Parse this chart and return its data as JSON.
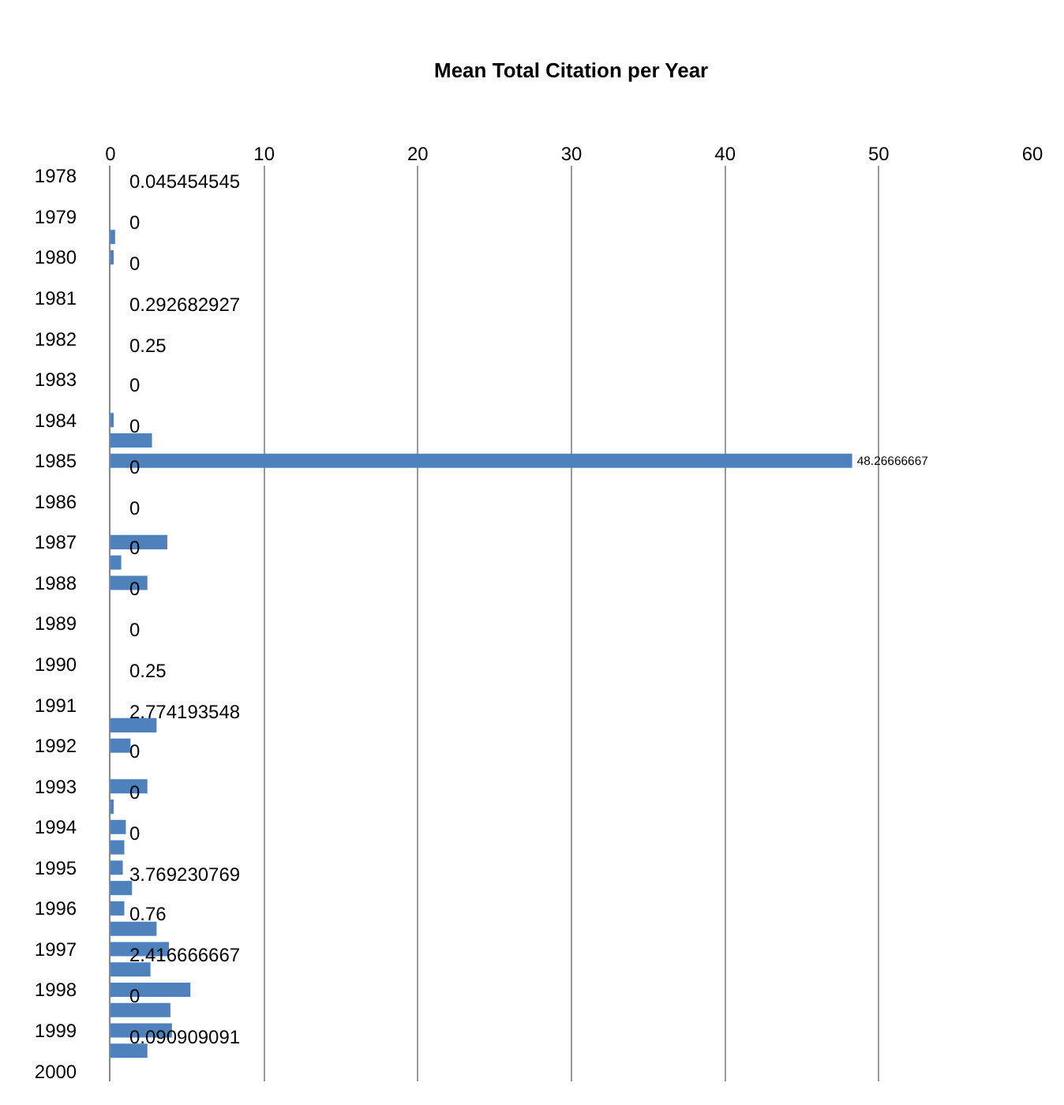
{
  "chart_data": {
    "type": "bar",
    "orientation": "horizontal",
    "title": "Mean Total Citation per Year",
    "categories": [
      "1978",
      null,
      "1979",
      null,
      "1980",
      null,
      "1981",
      null,
      "1982",
      null,
      "1983",
      null,
      "1984",
      null,
      "1985",
      null,
      "1986",
      null,
      "1987",
      null,
      "1988",
      null,
      "1989",
      null,
      "1990",
      null,
      "1991",
      null,
      "1992",
      null,
      "1993",
      null,
      "1994",
      null,
      "1995",
      null,
      "1996",
      null,
      "1997",
      null,
      "1998",
      null,
      "1999",
      null,
      "2000"
    ],
    "series": [
      {
        "color": "#4f81bd",
        "values": [
          null,
          null,
          null,
          0.3,
          0.2,
          null,
          null,
          null,
          null,
          null,
          null,
          null,
          0.2,
          2.7,
          48.26666667,
          null,
          null,
          null,
          3.7,
          0.7,
          2.4,
          null,
          null,
          null,
          null,
          null,
          null,
          3.0,
          1.3,
          null,
          2.4,
          0.2,
          1.0,
          0.9,
          0.8,
          1.4,
          0.9,
          3.0,
          3.8,
          2.6,
          5.2,
          3.9,
          4.0,
          2.4,
          null
        ],
        "value_labels": [
          null,
          null,
          null,
          null,
          null,
          null,
          null,
          null,
          null,
          null,
          null,
          null,
          null,
          null,
          "48.26666667",
          null,
          null,
          null,
          null,
          null,
          null,
          null,
          null,
          null,
          null,
          null,
          null,
          null,
          null,
          null,
          null,
          null,
          null,
          null,
          null,
          null,
          null,
          null,
          null,
          null,
          null,
          null,
          null,
          null,
          null
        ]
      }
    ],
    "xlim": [
      0,
      60
    ],
    "xticks": [
      0,
      10,
      20,
      30,
      40,
      50,
      60
    ],
    "grid": "x",
    "annotations": [
      "0.045454545",
      "0",
      "0",
      "0.292682927",
      "0.25",
      "0",
      "0",
      "0",
      "0",
      "0",
      "0",
      "0",
      "0.25",
      "2.774193548",
      "0",
      "0",
      "0",
      "3.769230769",
      "0.76",
      "2.416666667",
      "0",
      "0.090909091"
    ]
  }
}
